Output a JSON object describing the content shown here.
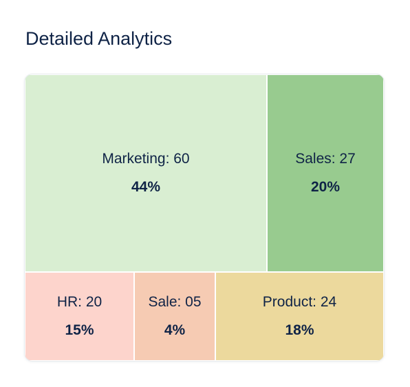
{
  "page": {
    "title": "Detailed Analytics"
  },
  "chart_data": {
    "type": "treemap",
    "items": [
      {
        "name": "Marketing",
        "label": "Marketing: 60",
        "value": 60,
        "percent_label": "44%",
        "color": "#d9eed2"
      },
      {
        "name": "Sales",
        "label": "Sales: 27",
        "value": 27,
        "percent_label": "20%",
        "color": "#98cb8f"
      },
      {
        "name": "HR",
        "label": "HR: 20",
        "value": 20,
        "percent_label": "15%",
        "color": "#fdd4cc"
      },
      {
        "name": "Sale",
        "label": "Sale: 05",
        "value": 5,
        "percent_label": "4%",
        "color": "#f6cbb3"
      },
      {
        "name": "Product",
        "label": "Product: 24",
        "value": 24,
        "percent_label": "18%",
        "color": "#ecd99d"
      }
    ]
  }
}
